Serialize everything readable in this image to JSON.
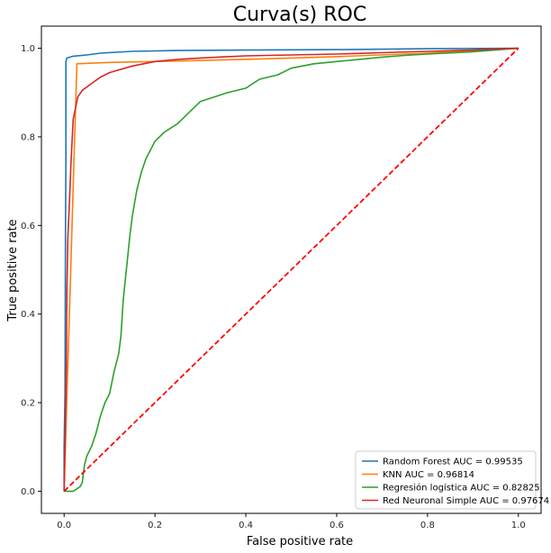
{
  "chart_data": {
    "type": "line",
    "title": "Curva(s) ROC",
    "xlabel": "False positive rate",
    "ylabel": "True positive rate",
    "xlim": [
      -0.05,
      1.05
    ],
    "ylim": [
      -0.05,
      1.05
    ],
    "xticks": [
      "0.0",
      "0.2",
      "0.4",
      "0.6",
      "0.8",
      "1.0"
    ],
    "yticks": [
      "0.0",
      "0.2",
      "0.4",
      "0.6",
      "0.8",
      "1.0"
    ],
    "grid": false,
    "legend_position": "lower-right",
    "series": [
      {
        "name": "Random Forest AUC = 0.99535",
        "color": "#1f77b4",
        "points": [
          [
            0,
            0
          ],
          [
            0,
            0.1
          ],
          [
            0.002,
            0.22
          ],
          [
            0.003,
            0.57
          ],
          [
            0.004,
            0.75
          ],
          [
            0.004,
            0.97
          ],
          [
            0.006,
            0.978
          ],
          [
            0.02,
            0.982
          ],
          [
            0.05,
            0.985
          ],
          [
            0.08,
            0.989
          ],
          [
            0.15,
            0.993
          ],
          [
            0.25,
            0.995
          ],
          [
            0.4,
            0.996
          ],
          [
            0.6,
            0.997
          ],
          [
            0.8,
            0.999
          ],
          [
            1,
            1
          ]
        ]
      },
      {
        "name": "KNN AUC = 0.96814",
        "color": "#ff7f0e",
        "points": [
          [
            0,
            0
          ],
          [
            0.028,
            0.965
          ],
          [
            0.1,
            0.968
          ],
          [
            0.2,
            0.97
          ],
          [
            0.4,
            0.975
          ],
          [
            0.6,
            0.981
          ],
          [
            0.8,
            0.989
          ],
          [
            1,
            1
          ]
        ]
      },
      {
        "name": "Regresión logística AUC = 0.82825",
        "color": "#2ca02c",
        "points": [
          [
            0,
            0
          ],
          [
            0.02,
            0
          ],
          [
            0.035,
            0.01
          ],
          [
            0.04,
            0.02
          ],
          [
            0.045,
            0.06
          ],
          [
            0.05,
            0.08
          ],
          [
            0.06,
            0.1
          ],
          [
            0.07,
            0.13
          ],
          [
            0.08,
            0.17
          ],
          [
            0.09,
            0.2
          ],
          [
            0.1,
            0.22
          ],
          [
            0.11,
            0.27
          ],
          [
            0.12,
            0.31
          ],
          [
            0.125,
            0.35
          ],
          [
            0.13,
            0.43
          ],
          [
            0.135,
            0.48
          ],
          [
            0.14,
            0.53
          ],
          [
            0.145,
            0.58
          ],
          [
            0.15,
            0.62
          ],
          [
            0.155,
            0.65
          ],
          [
            0.16,
            0.68
          ],
          [
            0.17,
            0.72
          ],
          [
            0.18,
            0.75
          ],
          [
            0.2,
            0.79
          ],
          [
            0.22,
            0.81
          ],
          [
            0.25,
            0.83
          ],
          [
            0.28,
            0.86
          ],
          [
            0.3,
            0.88
          ],
          [
            0.33,
            0.89
          ],
          [
            0.36,
            0.9
          ],
          [
            0.4,
            0.91
          ],
          [
            0.43,
            0.93
          ],
          [
            0.47,
            0.94
          ],
          [
            0.5,
            0.955
          ],
          [
            0.55,
            0.965
          ],
          [
            0.6,
            0.97
          ],
          [
            0.65,
            0.975
          ],
          [
            0.7,
            0.98
          ],
          [
            0.75,
            0.984
          ],
          [
            0.8,
            0.987
          ],
          [
            0.9,
            0.992
          ],
          [
            1,
            1
          ]
        ]
      },
      {
        "name": "Red Neuronal Simple AUC = 0.97674",
        "color": "#d62728",
        "points": [
          [
            0,
            0
          ],
          [
            0.002,
            0.1
          ],
          [
            0.005,
            0.3
          ],
          [
            0.006,
            0.45
          ],
          [
            0.008,
            0.57
          ],
          [
            0.012,
            0.66
          ],
          [
            0.015,
            0.74
          ],
          [
            0.02,
            0.84
          ],
          [
            0.03,
            0.89
          ],
          [
            0.04,
            0.905
          ],
          [
            0.06,
            0.92
          ],
          [
            0.08,
            0.935
          ],
          [
            0.1,
            0.945
          ],
          [
            0.15,
            0.96
          ],
          [
            0.2,
            0.97
          ],
          [
            0.25,
            0.975
          ],
          [
            0.3,
            0.978
          ],
          [
            0.4,
            0.983
          ],
          [
            0.5,
            0.985
          ],
          [
            0.6,
            0.987
          ],
          [
            0.7,
            0.99
          ],
          [
            0.8,
            0.993
          ],
          [
            0.9,
            0.996
          ],
          [
            1,
            1
          ]
        ]
      }
    ],
    "reference_line": {
      "color": "#ff0000",
      "points": [
        [
          0,
          0
        ],
        [
          1,
          1
        ]
      ]
    }
  }
}
